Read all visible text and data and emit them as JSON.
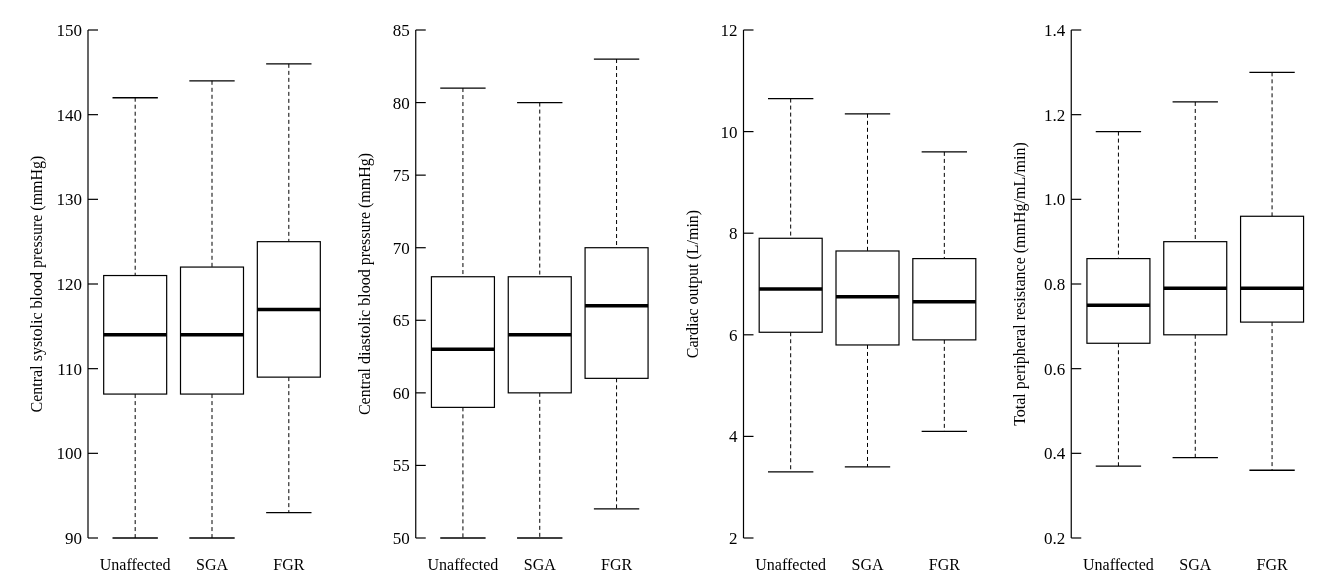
{
  "chart_data": [
    {
      "type": "box",
      "ylabel": "Central systolic blood pressure (mmHg)",
      "categories": [
        "Unaffected",
        "SGA",
        "FGR"
      ],
      "ylim": [
        90,
        150
      ],
      "yticks": [
        90,
        100,
        110,
        120,
        130,
        140,
        150
      ],
      "boxes": [
        {
          "low": 90,
          "q1": 107,
          "median": 114,
          "q3": 121,
          "high": 142
        },
        {
          "low": 90,
          "q1": 107,
          "median": 114,
          "q3": 122,
          "high": 144
        },
        {
          "low": 93,
          "q1": 109,
          "median": 117,
          "q3": 125,
          "high": 146
        }
      ]
    },
    {
      "type": "box",
      "ylabel": "Central diastolic blood pressure (mmHg)",
      "categories": [
        "Unaffected",
        "SGA",
        "FGR"
      ],
      "ylim": [
        50,
        85
      ],
      "yticks": [
        50,
        55,
        60,
        65,
        70,
        75,
        80,
        85
      ],
      "boxes": [
        {
          "low": 50,
          "q1": 59,
          "median": 63,
          "q3": 68,
          "high": 81
        },
        {
          "low": 50,
          "q1": 60,
          "median": 64,
          "q3": 68,
          "high": 80
        },
        {
          "low": 52,
          "q1": 61,
          "median": 66,
          "q3": 70,
          "high": 83
        }
      ]
    },
    {
      "type": "box",
      "ylabel": "Cardiac output (L/min)",
      "categories": [
        "Unaffected",
        "SGA",
        "FGR"
      ],
      "ylim": [
        2,
        12
      ],
      "yticks": [
        2,
        4,
        6,
        8,
        10,
        12
      ],
      "boxes": [
        {
          "low": 3.3,
          "q1": 6.05,
          "median": 6.9,
          "q3": 7.9,
          "high": 10.65
        },
        {
          "low": 3.4,
          "q1": 5.8,
          "median": 6.75,
          "q3": 7.65,
          "high": 10.35
        },
        {
          "low": 4.1,
          "q1": 5.9,
          "median": 6.65,
          "q3": 7.5,
          "high": 9.6
        }
      ]
    },
    {
      "type": "box",
      "ylabel": "Total peripheral resistance (mmHg/mL/min)",
      "categories": [
        "Unaffected",
        "SGA",
        "FGR"
      ],
      "ylim": [
        0.2,
        1.4
      ],
      "yticks": [
        {
          "value": 0.2,
          "label": "0.2"
        },
        {
          "value": 0.4,
          "label": "0.4"
        },
        {
          "value": 0.6,
          "label": "0.6"
        },
        {
          "value": 0.8,
          "label": "0.8"
        },
        {
          "value": 1.0,
          "label": "1.0"
        },
        {
          "value": 1.2,
          "label": "1.2"
        },
        {
          "value": 1.4,
          "label": "1.4"
        }
      ],
      "boxes": [
        {
          "low": 0.37,
          "q1": 0.66,
          "median": 0.75,
          "q3": 0.86,
          "high": 1.16
        },
        {
          "low": 0.39,
          "q1": 0.68,
          "median": 0.79,
          "q3": 0.9,
          "high": 1.23
        },
        {
          "low": 0.36,
          "q1": 0.71,
          "median": 0.79,
          "q3": 0.96,
          "high": 1.3
        }
      ]
    }
  ]
}
